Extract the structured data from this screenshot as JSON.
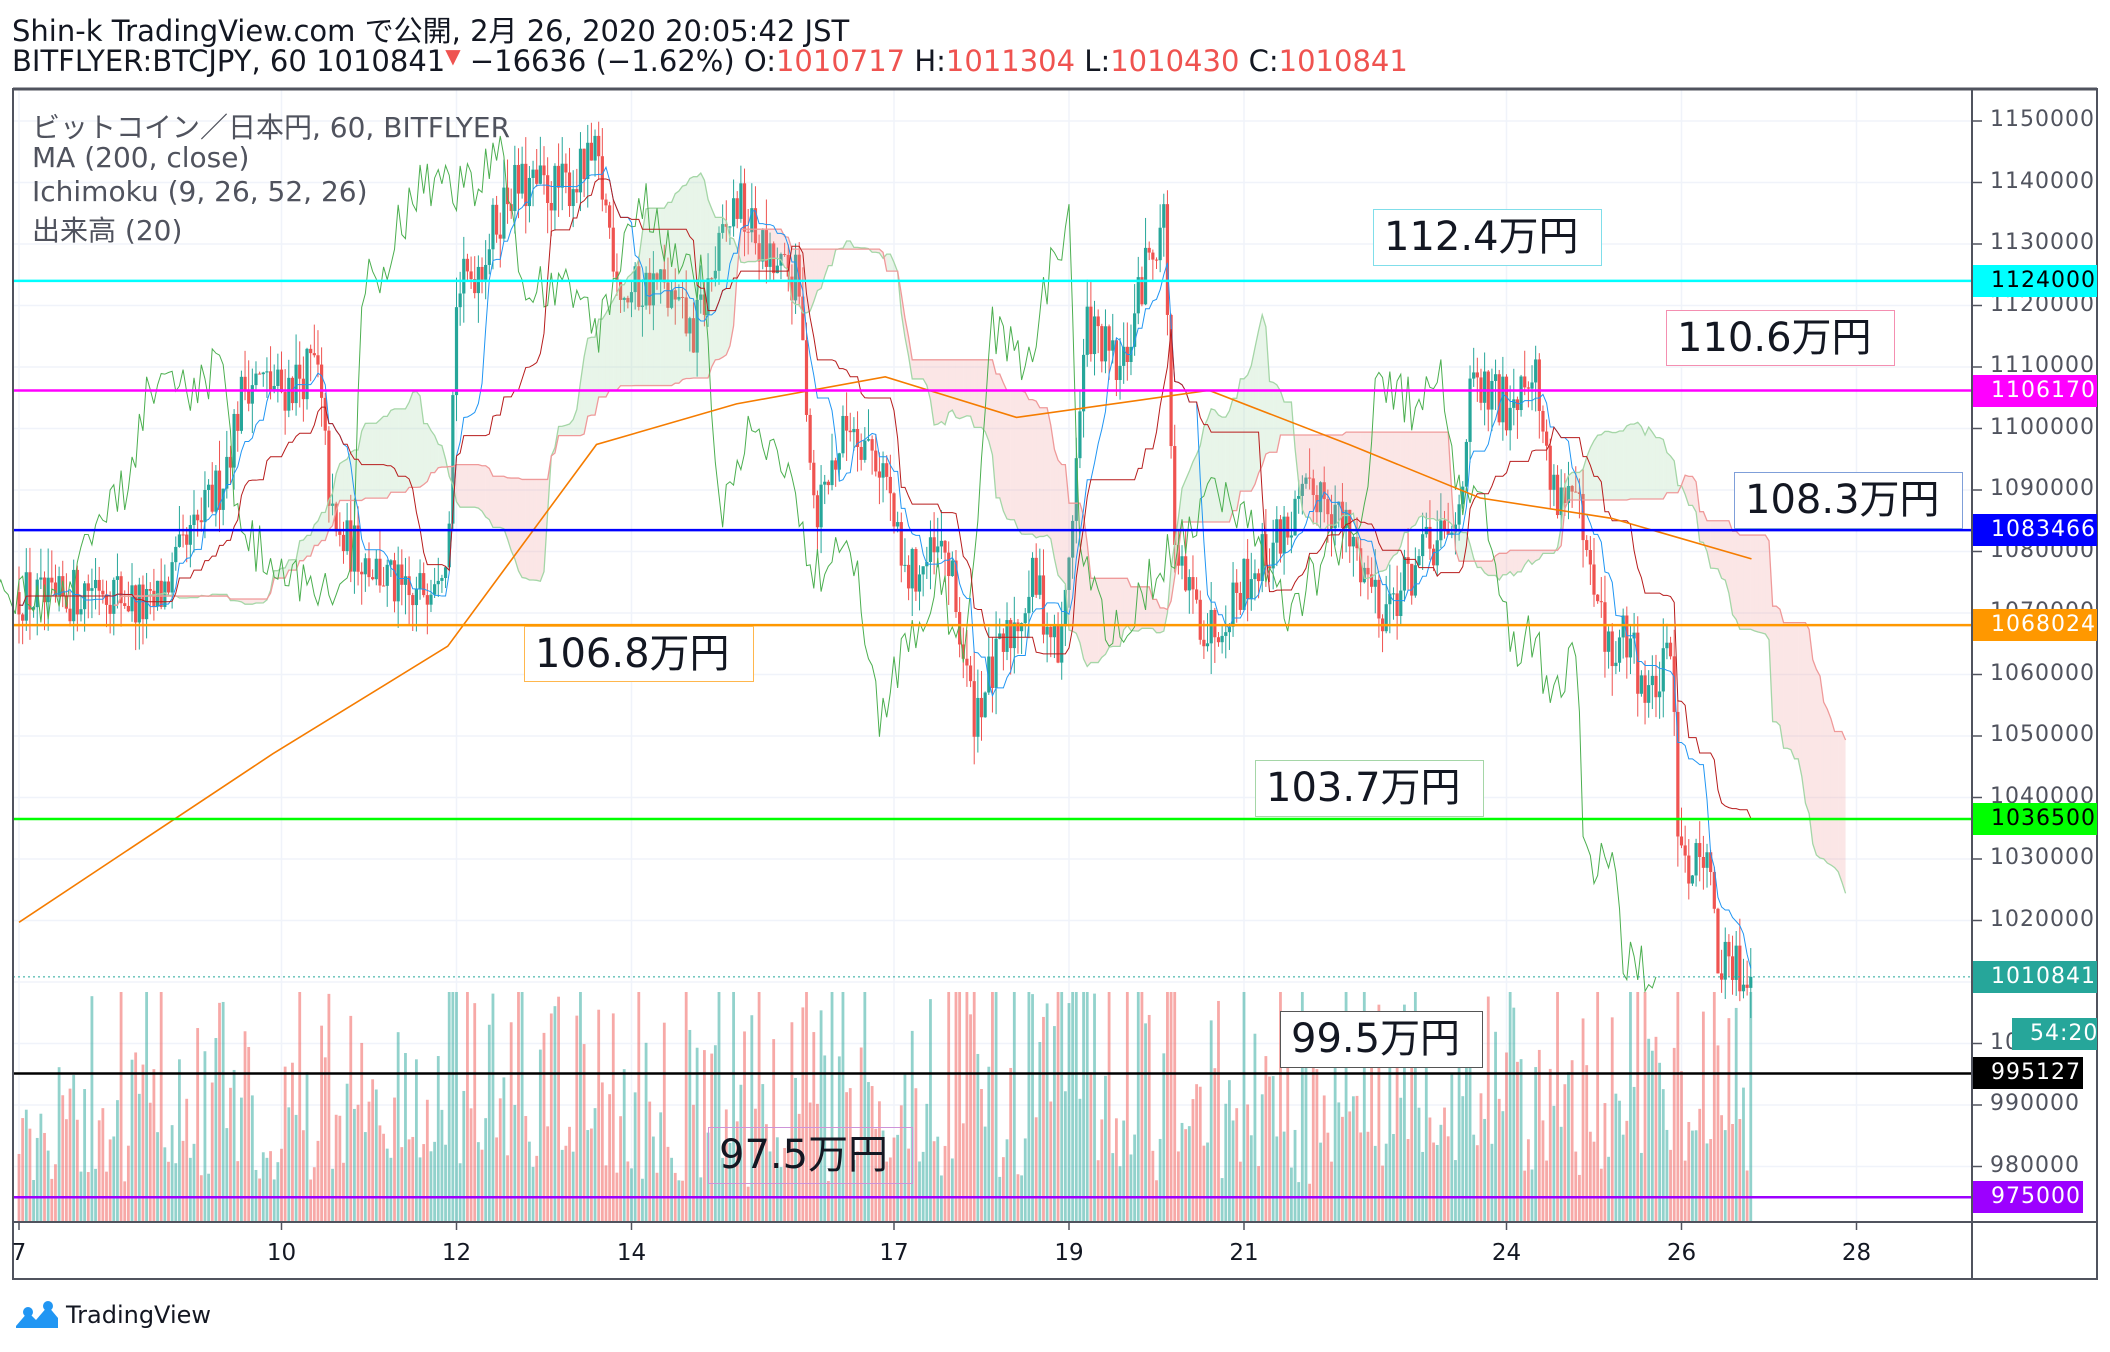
{
  "header": {
    "line1": "Shin-k TradingView.com で公開, 2月 26, 2020 20:05:42 JST",
    "symbol": "BITFLYER:BTCJPY, 60",
    "last": "1010841",
    "arrow": "▼",
    "change": "−16636 (−1.62%)",
    "o_label": "O:",
    "o": "1010717",
    "h_label": "H:",
    "h": "1011304",
    "l_label": "L:",
    "l": "1010430",
    "c_label": "C:",
    "c": "1010841"
  },
  "legend": [
    "ビットコイン／日本円, 60, BITFLYER",
    "MA (200, close)",
    "Ichimoku (9, 26, 52, 26)",
    "出来高 (20)"
  ],
  "levels": [
    {
      "label": "112.4万円",
      "price": 1124000,
      "tag": "1124000",
      "color": "#00ffff",
      "text": "#000000"
    },
    {
      "label": "110.6万円",
      "price": 1106170,
      "tag": "1106170",
      "color": "#ff00ff",
      "text": "#ffffff"
    },
    {
      "label": "108.3万円",
      "price": 1083466,
      "tag": "1083466",
      "color": "#0000ff",
      "text": "#ffffff"
    },
    {
      "label": "106.8万円",
      "price": 1068024,
      "tag": "1068024",
      "color": "#ff9800",
      "text": "#ffffff"
    },
    {
      "label": "103.7万円",
      "price": 1036500,
      "tag": "1036500",
      "color": "#00ff00",
      "text": "#000000"
    },
    {
      "label": "99.5万円",
      "price": 995127,
      "tag": "995127",
      "color": "#000000",
      "text": "#ffffff"
    },
    {
      "label": "97.5万円",
      "price": 975000,
      "tag": "975000",
      "color": "#9c00ff",
      "text": "#ffffff"
    }
  ],
  "last_price_tag": {
    "value": "1010841",
    "countdown": "54:20",
    "color": "#26a69a"
  },
  "chart_data": {
    "type": "candlestick",
    "interval": "60",
    "x_unit": "day of February 2020",
    "xticks": [
      "7",
      "10",
      "12",
      "14",
      "17",
      "19",
      "21",
      "24",
      "26",
      "28"
    ],
    "xtick_values": [
      7,
      10,
      12,
      14,
      17,
      19,
      21,
      24,
      26,
      28
    ],
    "yticks": [
      1150000,
      1140000,
      1130000,
      1120000,
      1110000,
      1100000,
      1090000,
      1080000,
      1070000,
      1060000,
      1050000,
      1040000,
      1030000,
      1020000,
      1010000,
      1000000,
      990000,
      980000
    ],
    "ylim": [
      970000,
      1157000
    ],
    "xlim": [
      6.95,
      29.4
    ],
    "up_color": "#26a69a",
    "down_color": "#ef5350",
    "approx_close_path": [
      [
        7.0,
        1073400
      ],
      [
        7.4,
        1071000
      ],
      [
        7.9,
        1075500
      ],
      [
        8.5,
        1070000
      ],
      [
        8.9,
        1080000
      ],
      [
        9.3,
        1091000
      ],
      [
        9.6,
        1108400
      ],
      [
        10.0,
        1106200
      ],
      [
        10.4,
        1110600
      ],
      [
        10.6,
        1082000
      ],
      [
        10.9,
        1080000
      ],
      [
        11.5,
        1071000
      ],
      [
        11.9,
        1082000
      ],
      [
        12.0,
        1121500
      ],
      [
        12.3,
        1128000
      ],
      [
        12.6,
        1139000
      ],
      [
        13.2,
        1139000
      ],
      [
        13.6,
        1143400
      ],
      [
        13.9,
        1121500
      ],
      [
        14.3,
        1123700
      ],
      [
        14.7,
        1115000
      ],
      [
        15.2,
        1137000
      ],
      [
        15.6,
        1126000
      ],
      [
        15.9,
        1123700
      ],
      [
        16.1,
        1086500
      ],
      [
        16.5,
        1101800
      ],
      [
        16.9,
        1093000
      ],
      [
        17.1,
        1075500
      ],
      [
        17.6,
        1080000
      ],
      [
        17.9,
        1053700
      ],
      [
        18.2,
        1062400
      ],
      [
        18.6,
        1075500
      ],
      [
        18.9,
        1062400
      ],
      [
        19.1,
        1097400
      ],
      [
        19.2,
        1117000
      ],
      [
        19.6,
        1108400
      ],
      [
        19.9,
        1128000
      ],
      [
        20.1,
        1134700
      ],
      [
        20.2,
        1077700
      ],
      [
        20.6,
        1066800
      ],
      [
        21.0,
        1075500
      ],
      [
        21.5,
        1084300
      ],
      [
        21.9,
        1091000
      ],
      [
        22.2,
        1082000
      ],
      [
        22.6,
        1071000
      ],
      [
        23.1,
        1080000
      ],
      [
        23.4,
        1082000
      ],
      [
        23.6,
        1106200
      ],
      [
        24.0,
        1104000
      ],
      [
        24.3,
        1111700
      ],
      [
        24.5,
        1091000
      ],
      [
        24.8,
        1088700
      ],
      [
        24.9,
        1077700
      ],
      [
        25.2,
        1062400
      ],
      [
        25.4,
        1066800
      ],
      [
        25.6,
        1055900
      ],
      [
        25.9,
        1062400
      ],
      [
        25.95,
        1038300
      ],
      [
        26.1,
        1027400
      ],
      [
        26.3,
        1034000
      ],
      [
        26.4,
        1013100
      ],
      [
        26.6,
        1012000
      ],
      [
        26.8,
        1010841
      ]
    ],
    "ma200": [
      [
        7.0,
        1019700
      ],
      [
        9.9,
        1047100
      ],
      [
        11.9,
        1064600
      ],
      [
        13.6,
        1097400
      ],
      [
        15.2,
        1104000
      ],
      [
        16.9,
        1108400
      ],
      [
        18.4,
        1101800
      ],
      [
        20.6,
        1106200
      ],
      [
        22.2,
        1097400
      ],
      [
        23.7,
        1088700
      ],
      [
        25.2,
        1085400
      ],
      [
        26.8,
        1078800
      ]
    ],
    "ma_color": "#f57c00",
    "ichimoku": {
      "tenkan_color": "#2196f3",
      "kijun_color": "#b71c1c",
      "chikou_color": "#4caf50",
      "cloud_up": "#a5d6a7",
      "cloud_down": "#ef9a9a"
    }
  },
  "footer": {
    "brand": "TradingView"
  }
}
